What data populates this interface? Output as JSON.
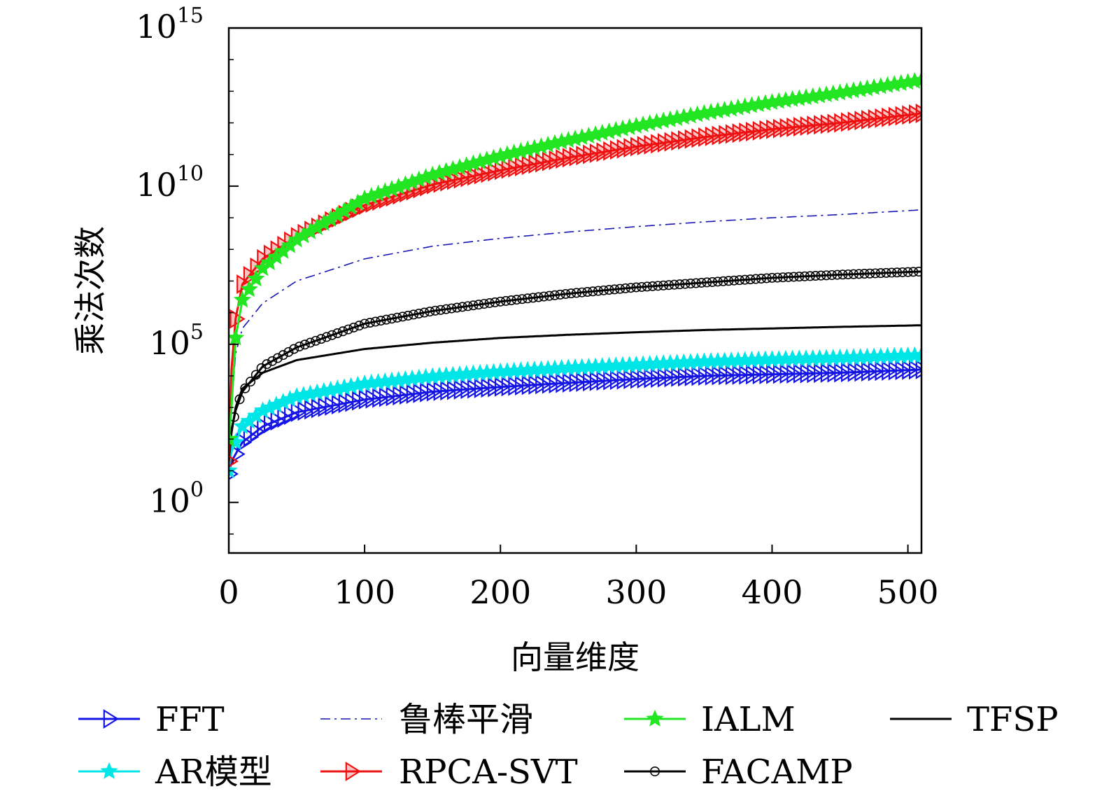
{
  "chart_data": {
    "type": "line",
    "xlabel": "向量维度",
    "ylabel": "乘法次数",
    "xlim": [
      0,
      510
    ],
    "ylim_log10": [
      -1.6,
      15
    ],
    "y_scale": "log",
    "grid": false,
    "legend_position": "bottom",
    "x_ticks": [
      {
        "value": 0,
        "label": "0"
      },
      {
        "value": 100,
        "label": "100"
      },
      {
        "value": 200,
        "label": "200"
      },
      {
        "value": 300,
        "label": "300"
      },
      {
        "value": 400,
        "label": "400"
      },
      {
        "value": 500,
        "label": "500"
      }
    ],
    "y_ticks": [
      {
        "exp": 0,
        "base": "10",
        "sup": "0"
      },
      {
        "exp": 5,
        "base": "10",
        "sup": "5"
      },
      {
        "exp": 10,
        "base": "10",
        "sup": "10"
      },
      {
        "exp": 15,
        "base": "10",
        "sup": "15"
      }
    ],
    "series": [
      {
        "name": "FFT",
        "color": "#1414e6",
        "style": "solid",
        "marker": "triangle-right",
        "points": [
          [
            0,
            0.9
          ],
          [
            2,
            1.3
          ],
          [
            10,
            1.9
          ],
          [
            25,
            2.4
          ],
          [
            50,
            2.85
          ],
          [
            100,
            3.25
          ],
          [
            150,
            3.5
          ],
          [
            200,
            3.65
          ],
          [
            250,
            3.78
          ],
          [
            300,
            3.9
          ],
          [
            350,
            4.0
          ],
          [
            400,
            4.05
          ],
          [
            450,
            4.1
          ],
          [
            510,
            4.2
          ]
        ]
      },
      {
        "name": "AR模型",
        "color": "#00e6e6",
        "style": "solid",
        "marker": "star",
        "points": [
          [
            0,
            1.0
          ],
          [
            2,
            1.6
          ],
          [
            10,
            2.4
          ],
          [
            25,
            2.9
          ],
          [
            50,
            3.35
          ],
          [
            100,
            3.75
          ],
          [
            150,
            3.98
          ],
          [
            200,
            4.13
          ],
          [
            250,
            4.25
          ],
          [
            300,
            4.35
          ],
          [
            350,
            4.45
          ],
          [
            400,
            4.52
          ],
          [
            450,
            4.57
          ],
          [
            510,
            4.65
          ]
        ]
      },
      {
        "name": "鲁棒平滑",
        "color": "#1414b4",
        "style": "dashdot",
        "marker": "none",
        "points": [
          [
            2,
            3.0
          ],
          [
            5,
            4.7
          ],
          [
            10,
            5.5
          ],
          [
            25,
            6.3
          ],
          [
            50,
            7.0
          ],
          [
            100,
            7.7
          ],
          [
            150,
            8.1
          ],
          [
            200,
            8.35
          ],
          [
            250,
            8.55
          ],
          [
            300,
            8.72
          ],
          [
            350,
            8.87
          ],
          [
            400,
            9.0
          ],
          [
            450,
            9.1
          ],
          [
            510,
            9.25
          ]
        ]
      },
      {
        "name": "RPCA-SVT",
        "color": "#ee1111",
        "style": "solid",
        "marker": "triangle-right",
        "points": [
          [
            0,
            1.3
          ],
          [
            2,
            4.2
          ],
          [
            5,
            5.8
          ],
          [
            10,
            6.9
          ],
          [
            25,
            7.7
          ],
          [
            50,
            8.4
          ],
          [
            100,
            9.4
          ],
          [
            150,
            10.05
          ],
          [
            200,
            10.5
          ],
          [
            250,
            10.9
          ],
          [
            300,
            11.25
          ],
          [
            350,
            11.55
          ],
          [
            400,
            11.8
          ],
          [
            450,
            12.0
          ],
          [
            510,
            12.3
          ]
        ]
      },
      {
        "name": "IALM",
        "color": "#22e622",
        "style": "solid",
        "marker": "star",
        "points": [
          [
            0,
            2.0
          ],
          [
            2,
            3.0
          ],
          [
            5,
            5.2
          ],
          [
            10,
            6.4
          ],
          [
            25,
            7.4
          ],
          [
            50,
            8.3
          ],
          [
            100,
            9.6
          ],
          [
            150,
            10.35
          ],
          [
            200,
            10.95
          ],
          [
            250,
            11.45
          ],
          [
            300,
            11.9
          ],
          [
            350,
            12.3
          ],
          [
            400,
            12.65
          ],
          [
            450,
            12.95
          ],
          [
            510,
            13.35
          ]
        ]
      },
      {
        "name": "TFSP",
        "color": "#000000",
        "style": "solid",
        "marker": "none",
        "points": [
          [
            0,
            1.3
          ],
          [
            2,
            2.2
          ],
          [
            5,
            3.0
          ],
          [
            10,
            3.6
          ],
          [
            25,
            4.1
          ],
          [
            50,
            4.5
          ],
          [
            100,
            4.85
          ],
          [
            150,
            5.05
          ],
          [
            200,
            5.2
          ],
          [
            250,
            5.3
          ],
          [
            300,
            5.38
          ],
          [
            350,
            5.45
          ],
          [
            400,
            5.5
          ],
          [
            450,
            5.55
          ],
          [
            510,
            5.6
          ]
        ]
      },
      {
        "name": "FACAMP",
        "color": "#000000",
        "style": "solid",
        "marker": "circle",
        "points": [
          [
            0,
            1.3
          ],
          [
            2,
            2.3
          ],
          [
            5,
            2.9
          ],
          [
            10,
            3.5
          ],
          [
            25,
            4.3
          ],
          [
            50,
            4.9
          ],
          [
            100,
            5.65
          ],
          [
            150,
            6.05
          ],
          [
            200,
            6.35
          ],
          [
            250,
            6.6
          ],
          [
            300,
            6.8
          ],
          [
            350,
            6.95
          ],
          [
            400,
            7.1
          ],
          [
            450,
            7.2
          ],
          [
            510,
            7.3
          ]
        ]
      }
    ]
  },
  "legend": {
    "items": [
      {
        "series": "FFT",
        "label": "FFT"
      },
      {
        "series": "鲁棒平滑",
        "label": "鲁棒平滑"
      },
      {
        "series": "IALM",
        "label": "IALM"
      },
      {
        "series": "TFSP",
        "label": "TFSP"
      },
      {
        "series": "AR模型",
        "label": "AR模型"
      },
      {
        "series": "RPCA-SVT",
        "label": "RPCA-SVT"
      },
      {
        "series": "FACAMP",
        "label": "FACAMP"
      }
    ]
  }
}
